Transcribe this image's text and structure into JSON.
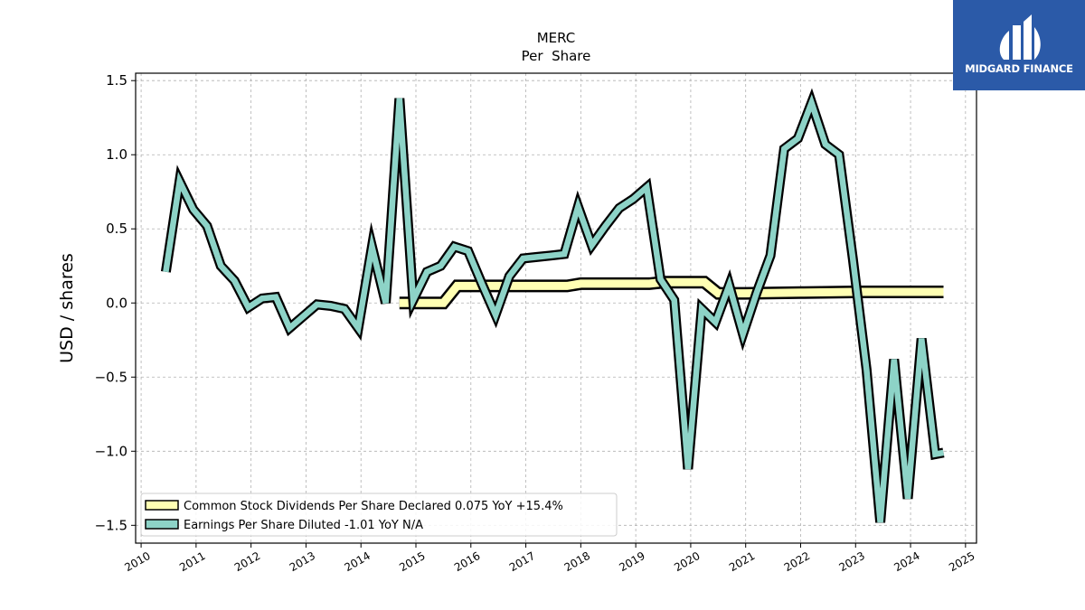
{
  "brand": {
    "name": "MIDGARD FINANCE",
    "bg_color": "#2b5aa8",
    "icon": "midgard-logo-icon"
  },
  "chart_data": {
    "type": "line",
    "title": "MERC",
    "subtitle": "Per  Share",
    "xlabel": "",
    "ylabel": "USD / shares",
    "xlim": [
      2009.9,
      2025.2
    ],
    "ylim": [
      -1.62,
      1.55
    ],
    "x_ticks": [
      "2010",
      "2011",
      "2012",
      "2013",
      "2014",
      "2015",
      "2016",
      "2017",
      "2018",
      "2019",
      "2020",
      "2021",
      "2022",
      "2023",
      "2024",
      "2025"
    ],
    "y_ticks": [
      -1.5,
      -1.0,
      -0.5,
      0.0,
      0.5,
      1.0,
      1.5
    ],
    "y_tick_labels": [
      "−1.5",
      "−1.0",
      "−0.5",
      "0.0",
      "0.5",
      "1.0",
      "1.5"
    ],
    "grid": true,
    "legend_position": "lower-left",
    "series": [
      {
        "name": "Common Stock Dividends Per Share Declared  0.075 YoY +15.4%",
        "color": "#ffffb3",
        "points": [
          [
            2014.7,
            0.0
          ],
          [
            2015.0,
            0.0
          ],
          [
            2015.25,
            0.0
          ],
          [
            2015.5,
            0.0
          ],
          [
            2015.75,
            0.115
          ],
          [
            2016.0,
            0.115
          ],
          [
            2016.5,
            0.115
          ],
          [
            2017.0,
            0.115
          ],
          [
            2017.5,
            0.115
          ],
          [
            2017.75,
            0.115
          ],
          [
            2018.0,
            0.13
          ],
          [
            2018.5,
            0.13
          ],
          [
            2019.0,
            0.13
          ],
          [
            2019.25,
            0.13
          ],
          [
            2019.5,
            0.14
          ],
          [
            2020.0,
            0.14
          ],
          [
            2020.25,
            0.14
          ],
          [
            2020.5,
            0.065
          ],
          [
            2021.0,
            0.065
          ],
          [
            2022.0,
            0.07
          ],
          [
            2023.0,
            0.075
          ],
          [
            2024.0,
            0.075
          ],
          [
            2024.6,
            0.075
          ]
        ]
      },
      {
        "name": "Earnings Per Share Diluted  -1.01 YoY N/A",
        "color": "#8dd3c7",
        "points": [
          [
            2010.45,
            0.21
          ],
          [
            2010.7,
            0.82
          ],
          [
            2010.95,
            0.63
          ],
          [
            2011.2,
            0.52
          ],
          [
            2011.45,
            0.25
          ],
          [
            2011.7,
            0.15
          ],
          [
            2011.95,
            -0.03
          ],
          [
            2012.2,
            0.03
          ],
          [
            2012.45,
            0.04
          ],
          [
            2012.7,
            -0.17
          ],
          [
            2012.95,
            -0.09
          ],
          [
            2013.2,
            -0.01
          ],
          [
            2013.45,
            -0.02
          ],
          [
            2013.7,
            -0.04
          ],
          [
            2013.95,
            -0.17
          ],
          [
            2014.2,
            0.38
          ],
          [
            2014.45,
            0.0
          ],
          [
            2014.7,
            1.38
          ],
          [
            2014.95,
            0.02
          ],
          [
            2015.2,
            0.21
          ],
          [
            2015.45,
            0.25
          ],
          [
            2015.7,
            0.38
          ],
          [
            2015.95,
            0.35
          ],
          [
            2016.2,
            0.13
          ],
          [
            2016.45,
            -0.08
          ],
          [
            2016.7,
            0.18
          ],
          [
            2016.95,
            0.3
          ],
          [
            2017.2,
            0.31
          ],
          [
            2017.45,
            0.32
          ],
          [
            2017.7,
            0.33
          ],
          [
            2017.95,
            0.65
          ],
          [
            2018.2,
            0.39
          ],
          [
            2018.45,
            0.52
          ],
          [
            2018.7,
            0.64
          ],
          [
            2018.95,
            0.7
          ],
          [
            2019.2,
            0.78
          ],
          [
            2019.45,
            0.16
          ],
          [
            2019.7,
            0.02
          ],
          [
            2019.95,
            -1.12
          ],
          [
            2020.2,
            -0.04
          ],
          [
            2020.45,
            -0.13
          ],
          [
            2020.7,
            0.12
          ],
          [
            2020.95,
            -0.21
          ],
          [
            2021.2,
            0.07
          ],
          [
            2021.45,
            0.32
          ],
          [
            2021.7,
            1.04
          ],
          [
            2021.95,
            1.11
          ],
          [
            2022.2,
            1.35
          ],
          [
            2022.45,
            1.07
          ],
          [
            2022.7,
            1.0
          ],
          [
            2022.95,
            0.3
          ],
          [
            2023.2,
            -0.45
          ],
          [
            2023.45,
            -1.48
          ],
          [
            2023.7,
            -0.38
          ],
          [
            2023.95,
            -1.32
          ],
          [
            2024.2,
            -0.24
          ],
          [
            2024.45,
            -1.02
          ],
          [
            2024.6,
            -1.01
          ]
        ]
      }
    ]
  }
}
